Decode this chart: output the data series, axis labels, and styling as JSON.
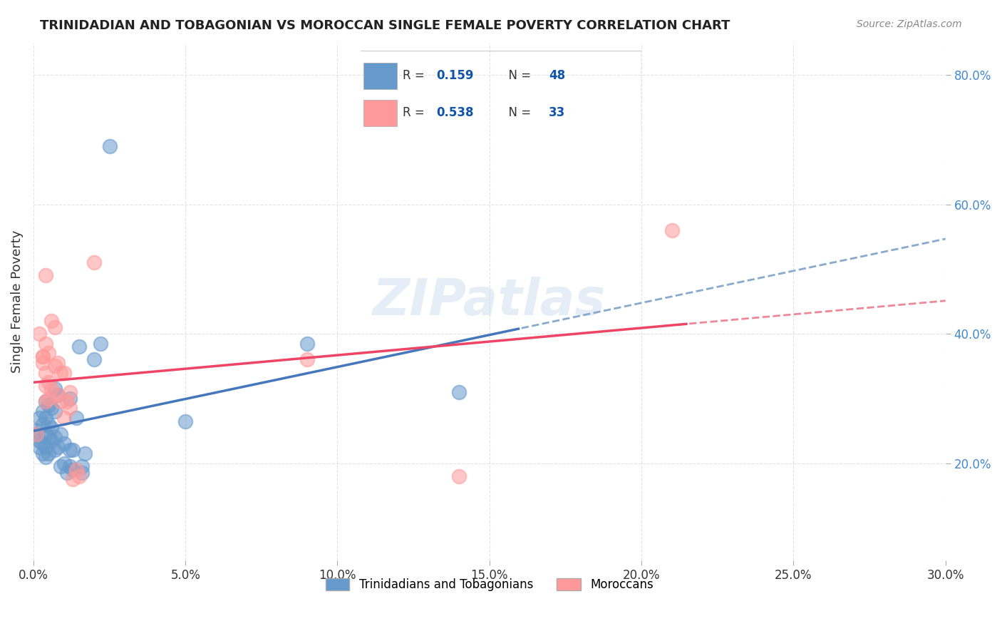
{
  "title": "TRINIDADIAN AND TOBAGONIAN VS MOROCCAN SINGLE FEMALE POVERTY CORRELATION CHART",
  "source": "Source: ZipAtlas.com",
  "ylabel": "Single Female Poverty",
  "xlabel": "",
  "legend_label_1": "Trinidadians and Tobagonians",
  "legend_label_2": "Moroccans",
  "R1": 0.159,
  "N1": 48,
  "R2": 0.538,
  "N2": 33,
  "color_blue": "#6699CC",
  "color_pink": "#FF9999",
  "xlim": [
    0.0,
    0.3
  ],
  "ylim": [
    0.05,
    0.85
  ],
  "blue_scatter": [
    [
      0.001,
      0.245
    ],
    [
      0.001,
      0.25
    ],
    [
      0.002,
      0.27
    ],
    [
      0.002,
      0.235
    ],
    [
      0.002,
      0.225
    ],
    [
      0.003,
      0.28
    ],
    [
      0.003,
      0.26
    ],
    [
      0.003,
      0.23
    ],
    [
      0.003,
      0.215
    ],
    [
      0.004,
      0.295
    ],
    [
      0.004,
      0.27
    ],
    [
      0.004,
      0.245
    ],
    [
      0.004,
      0.225
    ],
    [
      0.004,
      0.21
    ],
    [
      0.005,
      0.29
    ],
    [
      0.005,
      0.26
    ],
    [
      0.005,
      0.24
    ],
    [
      0.005,
      0.215
    ],
    [
      0.006,
      0.285
    ],
    [
      0.006,
      0.255
    ],
    [
      0.006,
      0.235
    ],
    [
      0.007,
      0.28
    ],
    [
      0.007,
      0.315
    ],
    [
      0.007,
      0.24
    ],
    [
      0.007,
      0.22
    ],
    [
      0.008,
      0.305
    ],
    [
      0.008,
      0.225
    ],
    [
      0.009,
      0.245
    ],
    [
      0.009,
      0.195
    ],
    [
      0.01,
      0.23
    ],
    [
      0.01,
      0.2
    ],
    [
      0.011,
      0.185
    ],
    [
      0.012,
      0.3
    ],
    [
      0.012,
      0.22
    ],
    [
      0.012,
      0.195
    ],
    [
      0.013,
      0.22
    ],
    [
      0.013,
      0.19
    ],
    [
      0.014,
      0.27
    ],
    [
      0.015,
      0.38
    ],
    [
      0.016,
      0.195
    ],
    [
      0.016,
      0.185
    ],
    [
      0.017,
      0.215
    ],
    [
      0.022,
      0.385
    ],
    [
      0.05,
      0.265
    ],
    [
      0.09,
      0.385
    ],
    [
      0.14,
      0.31
    ],
    [
      0.025,
      0.69
    ],
    [
      0.02,
      0.36
    ]
  ],
  "pink_scatter": [
    [
      0.001,
      0.245
    ],
    [
      0.002,
      0.4
    ],
    [
      0.003,
      0.365
    ],
    [
      0.003,
      0.365
    ],
    [
      0.003,
      0.355
    ],
    [
      0.004,
      0.385
    ],
    [
      0.004,
      0.34
    ],
    [
      0.004,
      0.32
    ],
    [
      0.004,
      0.295
    ],
    [
      0.005,
      0.37
    ],
    [
      0.005,
      0.325
    ],
    [
      0.005,
      0.3
    ],
    [
      0.006,
      0.42
    ],
    [
      0.006,
      0.315
    ],
    [
      0.007,
      0.41
    ],
    [
      0.007,
      0.35
    ],
    [
      0.008,
      0.355
    ],
    [
      0.008,
      0.305
    ],
    [
      0.009,
      0.34
    ],
    [
      0.009,
      0.295
    ],
    [
      0.01,
      0.34
    ],
    [
      0.01,
      0.27
    ],
    [
      0.011,
      0.295
    ],
    [
      0.012,
      0.31
    ],
    [
      0.012,
      0.285
    ],
    [
      0.013,
      0.175
    ],
    [
      0.014,
      0.19
    ],
    [
      0.015,
      0.18
    ],
    [
      0.09,
      0.36
    ],
    [
      0.14,
      0.18
    ],
    [
      0.02,
      0.51
    ],
    [
      0.004,
      0.49
    ],
    [
      0.21,
      0.56
    ]
  ],
  "watermark": "ZIPatlas",
  "watermark_color": "#CCDDEE",
  "grid_color": "#DDDDDD",
  "background_color": "#FFFFFF"
}
